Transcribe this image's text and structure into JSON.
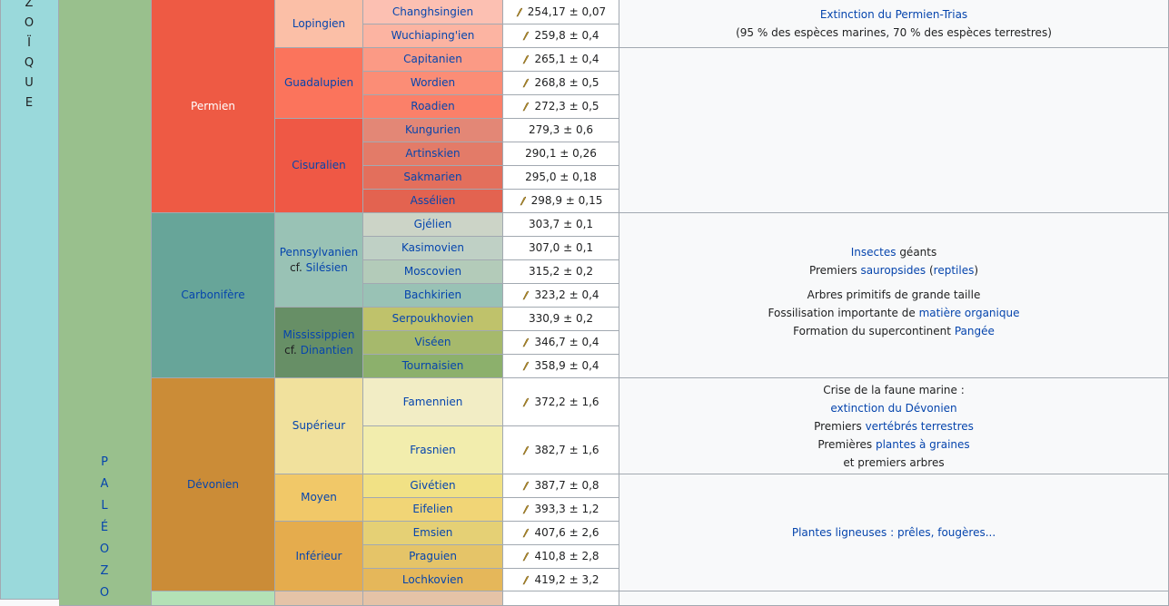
{
  "eon_letters": [
    "Z",
    "O",
    "Ï",
    "Q",
    "U",
    "E"
  ],
  "era_letters": [
    "P",
    "A",
    "L",
    "É",
    "O",
    "Z",
    "O"
  ],
  "periods": {
    "permien": "Permien",
    "carbonifere": "Carbonifère",
    "devonien": "Dévonien"
  },
  "epochs": {
    "lopingien": "Lopingien",
    "guadalupien": "Guadalupien",
    "cisuralien": "Cisuralien",
    "pennsylvanien": "Pennsylvanien",
    "pennsylvanien_cf": "cf.",
    "silesien": "Silésien",
    "mississippien": "Mississippien",
    "mississippien_cf": "cf.",
    "dinantien": "Dinantien",
    "superieur": "Supérieur",
    "moyen": "Moyen",
    "inferieur": "Inférieur"
  },
  "stages": [
    {
      "name": "Changhsingien",
      "age": "254,17 ± 0,07",
      "gssp": true
    },
    {
      "name": "Wuchiaping'ien",
      "age": "259,8 ± 0,4",
      "gssp": true
    },
    {
      "name": "Capitanien",
      "age": "265,1 ± 0,4",
      "gssp": true
    },
    {
      "name": "Wordien",
      "age": "268,8 ± 0,5",
      "gssp": true
    },
    {
      "name": "Roadien",
      "age": "272,3 ± 0,5",
      "gssp": true
    },
    {
      "name": "Kungurien",
      "age": "279,3 ± 0,6",
      "gssp": false
    },
    {
      "name": "Artinskien",
      "age": "290,1 ± 0,26",
      "gssp": false
    },
    {
      "name": "Sakmarien",
      "age": "295,0 ± 0,18",
      "gssp": false
    },
    {
      "name": "Assélien",
      "age": "298,9 ± 0,15",
      "gssp": true
    },
    {
      "name": "Gjélien",
      "age": "303,7 ± 0,1",
      "gssp": false
    },
    {
      "name": "Kasimovien",
      "age": "307,0 ± 0,1",
      "gssp": false
    },
    {
      "name": "Moscovien",
      "age": "315,2 ± 0,2",
      "gssp": false
    },
    {
      "name": "Bachkirien",
      "age": "323,2 ± 0,4",
      "gssp": true
    },
    {
      "name": "Serpoukhovien",
      "age": "330,9 ± 0,2",
      "gssp": false
    },
    {
      "name": "Viséen",
      "age": "346,7 ± 0,4",
      "gssp": true
    },
    {
      "name": "Tournaisien",
      "age": "358,9 ± 0,4",
      "gssp": true
    },
    {
      "name": "Famennien",
      "age": "372,2 ± 1,6",
      "gssp": true
    },
    {
      "name": "Frasnien",
      "age": "382,7 ± 1,6",
      "gssp": true
    },
    {
      "name": "Givétien",
      "age": "387,7 ± 0,8",
      "gssp": true
    },
    {
      "name": "Eifelien",
      "age": "393,3 ± 1,2",
      "gssp": true
    },
    {
      "name": "Emsien",
      "age": "407,6 ± 2,6",
      "gssp": true
    },
    {
      "name": "Praguien",
      "age": "410,8 ± 2,8",
      "gssp": true
    },
    {
      "name": "Lochkovien",
      "age": "419,2 ± 3,2",
      "gssp": true
    }
  ],
  "notes": {
    "permien": {
      "link": "Extinction du Permien-Trias",
      "text": "(95 % des espèces marines, 70 % des espèces terrestres)"
    },
    "carbonifere": {
      "insectes_link": "Insectes",
      "insectes_text": "géants",
      "premiers_text": "Premiers",
      "sauropsides_link": "sauropsides",
      "paren_open": "(",
      "reptiles_link": "reptiles",
      "paren_close": ")",
      "arbres_text": "Arbres primitifs de grande taille",
      "fossil_text": "Fossilisation importante de",
      "fossil_link": "matière organique",
      "formation_text": "Formation du supercontinent",
      "pangee_link": "Pangée"
    },
    "devonien_sup": {
      "crise_text": "Crise de la faune marine :",
      "extinction_link": "extinction du Dévonien",
      "premiers_text": "Premiers",
      "vertebres_link": "vertébrés terrestres",
      "premieres_text": "Premières",
      "plantes_link": "plantes à graines",
      "arbres_text": "et premiers arbres"
    },
    "devonien_low": {
      "plantes_link": "Plantes ligneuses : prêles, fougères..."
    }
  },
  "colors": {
    "eon": "#9ad9db",
    "era": "#99c08d",
    "permien": "#f04028",
    "carbonifere": "#67a599",
    "devonien": "#cb8c37",
    "lopingien": "#fbbfa7",
    "guadalupien": "#fb745c",
    "cisuralien": "#ef5845",
    "pennsylvanien": "#99c2b5",
    "mississippien": "#678f66",
    "dev_superieur": "#f1e19d",
    "dev_moyen": "#f1c868",
    "dev_inferieur": "#e5ac4d"
  }
}
